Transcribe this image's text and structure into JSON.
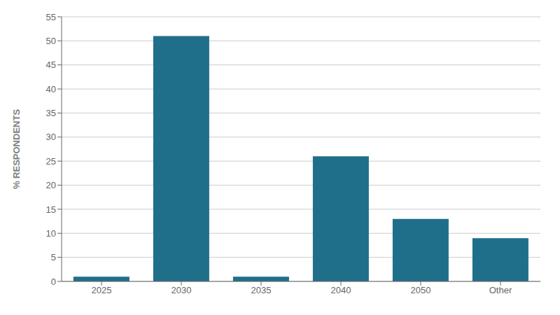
{
  "chart_data": {
    "type": "bar",
    "categories": [
      "2025",
      "2030",
      "2035",
      "2040",
      "2050",
      "Other"
    ],
    "values": [
      1,
      51,
      1,
      26,
      13,
      9
    ],
    "color": "#1f6f8b",
    "ylabel": "% RESPONDENTS",
    "ylim": [
      0,
      55
    ],
    "yticks": [
      0,
      5,
      10,
      15,
      20,
      25,
      30,
      35,
      40,
      45,
      50,
      55
    ],
    "grid": true
  }
}
